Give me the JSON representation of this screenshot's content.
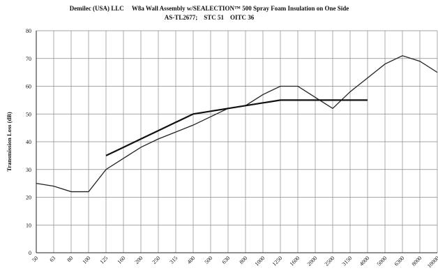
{
  "chart_data": {
    "type": "line",
    "title": "Demilec (USA) LLC     W8a Wall Assembly w/SEALECTION™ 500 Spray Foam Insulation on One Side",
    "subtitle": "AS-TL2677;    STC 51    OITC 36",
    "y_label": "Transmission Loss (dB)",
    "categories": [
      "50",
      "63",
      "80",
      "100",
      "125",
      "160",
      "200",
      "250",
      "315",
      "400",
      "500",
      "630",
      "800",
      "1000",
      "1250",
      "1600",
      "2000",
      "2500",
      "3150",
      "4000",
      "5000",
      "6300",
      "8000",
      "10000"
    ],
    "series": [
      {
        "color": "#222222",
        "values": [
          25,
          24,
          22,
          22,
          30,
          34,
          38,
          41,
          43.5,
          46,
          49,
          52,
          53,
          57,
          60,
          60,
          56,
          52,
          58,
          63,
          68,
          71,
          69,
          65
        ]
      },
      {
        "color": "#111111",
        "values": [
          null,
          null,
          null,
          null,
          35,
          38,
          41,
          44,
          47,
          50,
          51,
          52,
          53,
          54,
          55,
          55,
          55,
          55,
          55,
          55,
          null,
          null,
          null,
          null
        ]
      }
    ],
    "ylim": [
      0,
      80
    ],
    "yticks": [
      0,
      10,
      20,
      30,
      40,
      50,
      60,
      70,
      80
    ],
    "grid": true
  }
}
